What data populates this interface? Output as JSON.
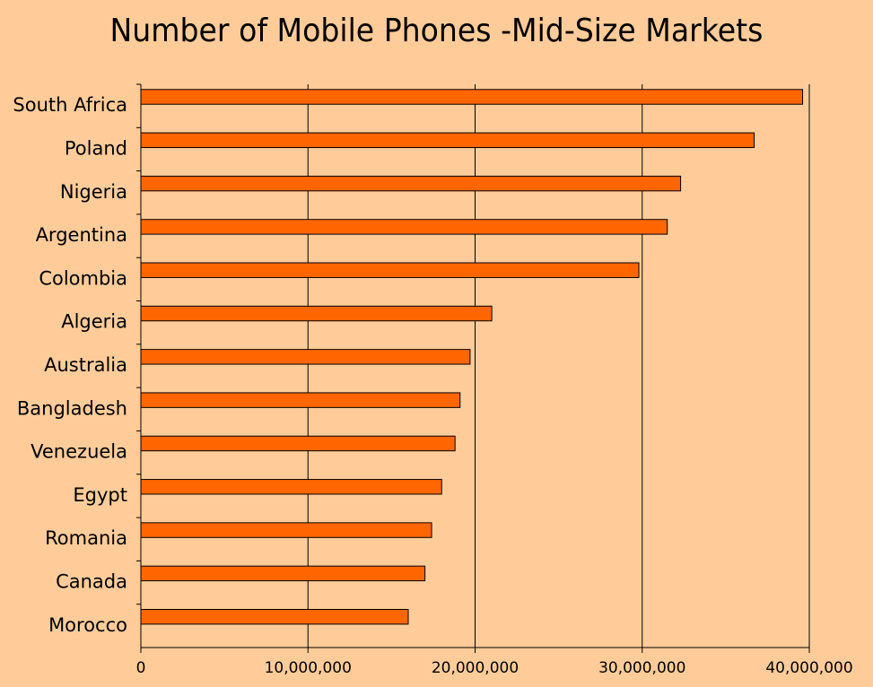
{
  "chart_data": {
    "type": "bar",
    "orientation": "horizontal",
    "title": "Number of Mobile Phones -Mid-Size Markets",
    "xlabel": "",
    "ylabel": "",
    "categories": [
      "South Africa",
      "Poland",
      "Nigeria",
      "Argentina",
      "Colombia",
      "Algeria",
      "Australia",
      "Bangladesh",
      "Venezuela",
      "Egypt",
      "Romania",
      "Canada",
      "Morocco"
    ],
    "values": [
      39600000,
      36700000,
      32300000,
      31500000,
      29800000,
      21000000,
      19700000,
      19100000,
      18800000,
      18000000,
      17400000,
      17000000,
      16000000
    ],
    "xlim": [
      0,
      40000000
    ],
    "xticks": [
      "0",
      "10,000,000",
      "20,000,000",
      "30,000,000",
      "40,000,000"
    ],
    "grid": "vertical",
    "legend": "none",
    "colors": {
      "bar": "#FF6600",
      "bar_stroke": "#000000",
      "background": "#FFCC99",
      "grid": "#000000"
    }
  }
}
